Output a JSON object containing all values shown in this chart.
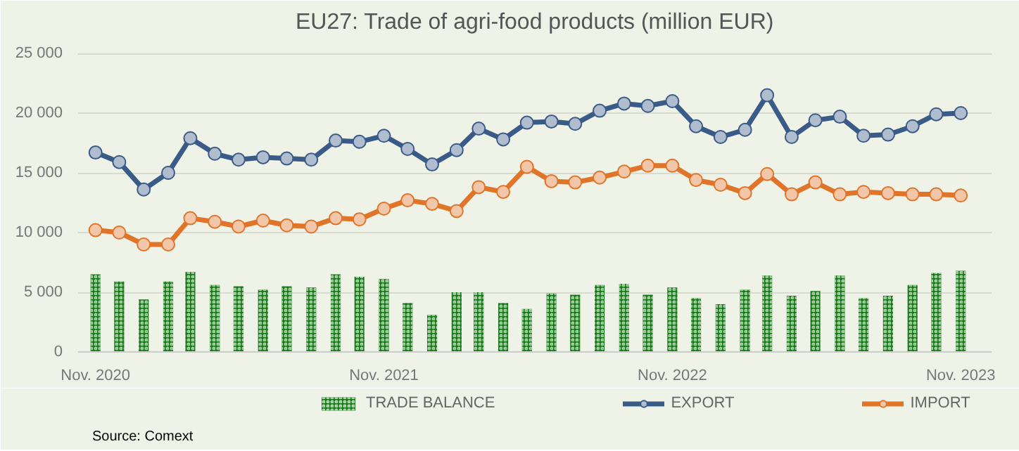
{
  "chart_data": {
    "type": "line",
    "title": "EU27: Trade of agri-food products (million EUR)",
    "x": [
      "2020-11",
      "2020-12",
      "2021-01",
      "2021-02",
      "2021-03",
      "2021-04",
      "2021-05",
      "2021-06",
      "2021-07",
      "2021-08",
      "2021-09",
      "2021-10",
      "2021-11",
      "2021-12",
      "2022-01",
      "2022-02",
      "2022-03",
      "2022-04",
      "2022-05",
      "2022-06",
      "2022-07",
      "2022-08",
      "2022-09",
      "2022-10",
      "2022-11",
      "2022-12",
      "2023-01",
      "2023-02",
      "2023-03",
      "2023-04",
      "2023-05",
      "2023-06",
      "2023-07",
      "2023-08",
      "2023-09",
      "2023-10",
      "2023-11"
    ],
    "series": [
      {
        "name": "TRADE BALANCE",
        "type": "bar",
        "color": "#1a7a1a",
        "values": [
          6500,
          5900,
          4400,
          5900,
          6700,
          5600,
          5500,
          5200,
          5500,
          5400,
          6500,
          6300,
          6100,
          4100,
          3100,
          5000,
          5000,
          4100,
          3600,
          4900,
          4800,
          5600,
          5700,
          4800,
          5400,
          4500,
          4000,
          5200,
          6400,
          4700,
          5100,
          6400,
          4500,
          4700,
          5600,
          6600,
          6800
        ]
      },
      {
        "name": "EXPORT",
        "color": "#3a5a88",
        "values": [
          16700,
          15900,
          13600,
          15000,
          17900,
          16600,
          16100,
          16300,
          16200,
          16100,
          17700,
          17600,
          18100,
          17000,
          15700,
          16900,
          18700,
          17800,
          19200,
          19300,
          19100,
          20200,
          20800,
          20600,
          21000,
          18900,
          18000,
          18600,
          21500,
          18000,
          19400,
          19700,
          18100,
          18200,
          18900,
          19900,
          20000
        ]
      },
      {
        "name": "IMPORT",
        "color": "#e07428",
        "values": [
          10200,
          10000,
          9000,
          9000,
          11200,
          10900,
          10500,
          11000,
          10600,
          10500,
          11200,
          11100,
          12000,
          12700,
          12400,
          11800,
          13800,
          13400,
          15500,
          14300,
          14200,
          14600,
          15100,
          15600,
          15600,
          14400,
          14000,
          13300,
          14900,
          13200,
          14200,
          13200,
          13400,
          13300,
          13200,
          13200,
          13100
        ]
      }
    ],
    "xlim": [
      "2020-10-10",
      "2023-12-10"
    ],
    "xticks": [
      {
        "value": "2020-11",
        "label": "Nov. 2020"
      },
      {
        "value": "2021-11",
        "label": "Nov. 2021"
      },
      {
        "value": "2022-11",
        "label": "Nov. 2022"
      },
      {
        "value": "2023-11",
        "label": "Nov. 2023"
      }
    ],
    "ylim": [
      0,
      26000
    ],
    "yticks": [
      {
        "value": 0,
        "label": "0"
      },
      {
        "value": 5000,
        "label": "5 000"
      },
      {
        "value": 10000,
        "label": "10 000"
      },
      {
        "value": 15000,
        "label": "15 000"
      },
      {
        "value": 20000,
        "label": "20 000"
      },
      {
        "value": 25000,
        "label": "25 000"
      }
    ],
    "grid": "y",
    "legend": "bottom",
    "marker": "circle",
    "line_style": "solid",
    "annotations": [
      "Source: Comext"
    ]
  }
}
